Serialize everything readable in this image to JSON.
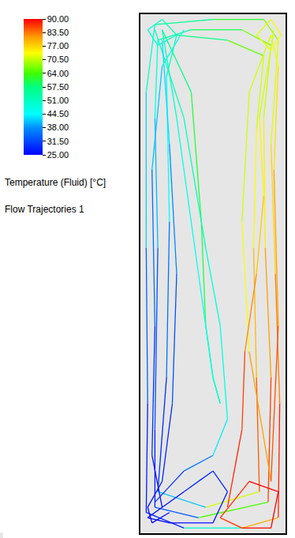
{
  "chart_data": {
    "type": "flow_trajectories",
    "xlim": [
      0,
      1
    ],
    "ylim": [
      0,
      1
    ],
    "grid": false,
    "tick_labels": false,
    "colorbar": {
      "title": "Temperature (Fluid) [°C]",
      "range": [
        25,
        90
      ],
      "ticks": [
        {
          "value": 90,
          "label": "90.00"
        },
        {
          "value": 83.5,
          "label": "83.50"
        },
        {
          "value": 77,
          "label": "77.00"
        },
        {
          "value": 70.5,
          "label": "70.50"
        },
        {
          "value": 64,
          "label": "64.00"
        },
        {
          "value": 57.5,
          "label": "57.50"
        },
        {
          "value": 51,
          "label": "51.00"
        },
        {
          "value": 44.5,
          "label": "44.50"
        },
        {
          "value": 38,
          "label": "38.00"
        },
        {
          "value": 31.5,
          "label": "31.50"
        },
        {
          "value": 25,
          "label": "25.00"
        }
      ]
    },
    "annotations": [
      "Flow Trajectories 1"
    ],
    "trajectories": [
      [
        [
          0.95,
          0.03,
          90
        ],
        [
          0.96,
          0.25,
          86
        ],
        [
          0.93,
          0.5,
          80
        ],
        [
          0.9,
          0.75,
          74
        ],
        [
          0.95,
          0.95,
          70
        ],
        [
          0.85,
          0.99,
          66
        ],
        [
          0.5,
          0.99,
          58
        ],
        [
          0.1,
          0.98,
          52
        ],
        [
          0.04,
          0.85,
          46
        ],
        [
          0.04,
          0.55,
          38
        ],
        [
          0.05,
          0.25,
          30
        ],
        [
          0.04,
          0.04,
          26
        ],
        [
          0.3,
          0.01,
          30
        ],
        [
          0.7,
          0.01,
          70
        ],
        [
          0.95,
          0.03,
          90
        ]
      ],
      [
        [
          0.88,
          0.06,
          89
        ],
        [
          0.9,
          0.3,
          84
        ],
        [
          0.86,
          0.55,
          78
        ],
        [
          0.85,
          0.8,
          72
        ],
        [
          0.9,
          0.94,
          70
        ],
        [
          0.7,
          0.97,
          63
        ],
        [
          0.35,
          0.97,
          56
        ],
        [
          0.12,
          0.95,
          50
        ],
        [
          0.1,
          0.8,
          45
        ],
        [
          0.12,
          0.55,
          36
        ],
        [
          0.1,
          0.2,
          29
        ],
        [
          0.1,
          0.05,
          26
        ],
        [
          0.4,
          0.03,
          40
        ],
        [
          0.88,
          0.06,
          89
        ]
      ],
      [
        [
          0.82,
          0.08,
          88
        ],
        [
          0.8,
          0.3,
          82
        ],
        [
          0.78,
          0.55,
          76
        ],
        [
          0.8,
          0.78,
          72
        ],
        [
          0.85,
          0.92,
          71
        ],
        [
          0.6,
          0.95,
          60
        ],
        [
          0.25,
          0.96,
          54
        ],
        [
          0.18,
          0.88,
          49
        ],
        [
          0.2,
          0.6,
          40
        ],
        [
          0.18,
          0.3,
          31
        ],
        [
          0.12,
          0.08,
          27
        ],
        [
          0.45,
          0.05,
          55
        ],
        [
          0.82,
          0.08,
          88
        ]
      ],
      [
        [
          0.9,
          0.1,
          87
        ],
        [
          0.75,
          0.35,
          75
        ],
        [
          0.7,
          0.6,
          72
        ],
        [
          0.75,
          0.85,
          71
        ],
        [
          0.9,
          0.96,
          72
        ],
        [
          0.95,
          0.9,
          74
        ],
        [
          0.92,
          0.7,
          78
        ],
        [
          0.95,
          0.4,
          84
        ],
        [
          0.9,
          0.1,
          87
        ]
      ],
      [
        [
          0.15,
          0.97,
          52
        ],
        [
          0.35,
          0.85,
          60
        ],
        [
          0.42,
          0.6,
          62
        ],
        [
          0.45,
          0.4,
          58
        ],
        [
          0.5,
          0.3,
          54
        ],
        [
          0.55,
          0.25,
          50
        ],
        [
          0.5,
          0.3,
          48
        ],
        [
          0.4,
          0.5,
          45
        ],
        [
          0.25,
          0.8,
          48
        ],
        [
          0.15,
          0.97,
          52
        ]
      ],
      [
        [
          0.1,
          0.97,
          50
        ],
        [
          0.3,
          0.8,
          52
        ],
        [
          0.45,
          0.55,
          50
        ],
        [
          0.55,
          0.4,
          48
        ],
        [
          0.6,
          0.22,
          47
        ],
        [
          0.5,
          0.15,
          40
        ],
        [
          0.3,
          0.12,
          32
        ],
        [
          0.1,
          0.06,
          27
        ]
      ],
      [
        [
          0.15,
          0.95,
          45
        ],
        [
          0.2,
          0.75,
          40
        ],
        [
          0.25,
          0.5,
          35
        ],
        [
          0.22,
          0.25,
          30
        ],
        [
          0.15,
          0.1,
          27
        ],
        [
          0.05,
          0.05,
          25
        ],
        [
          0.08,
          0.02,
          25
        ],
        [
          0.2,
          0.04,
          27
        ]
      ],
      [
        [
          0.05,
          0.03,
          25
        ],
        [
          0.3,
          0.08,
          27
        ],
        [
          0.5,
          0.12,
          30
        ],
        [
          0.6,
          0.08,
          28
        ],
        [
          0.5,
          0.02,
          27
        ],
        [
          0.2,
          0.02,
          25
        ],
        [
          0.05,
          0.03,
          25
        ]
      ],
      [
        [
          0.55,
          0.03,
          85
        ],
        [
          0.75,
          0.1,
          90
        ],
        [
          0.95,
          0.08,
          90
        ],
        [
          0.9,
          0.01,
          90
        ],
        [
          0.7,
          0.01,
          89
        ],
        [
          0.55,
          0.03,
          85
        ]
      ],
      [
        [
          0.6,
          0.05,
          88
        ],
        [
          0.7,
          0.2,
          88
        ],
        [
          0.72,
          0.35,
          85
        ],
        [
          0.8,
          0.5,
          80
        ],
        [
          0.85,
          0.65,
          76
        ],
        [
          0.82,
          0.8,
          73
        ],
        [
          0.92,
          0.97,
          70
        ]
      ],
      [
        [
          0.8,
          0.96,
          72
        ],
        [
          0.9,
          0.99,
          72
        ],
        [
          0.97,
          0.96,
          74
        ],
        [
          0.9,
          0.93,
          73
        ],
        [
          0.8,
          0.96,
          72
        ]
      ],
      [
        [
          0.05,
          0.97,
          48
        ],
        [
          0.15,
          0.99,
          50
        ],
        [
          0.25,
          0.96,
          52
        ],
        [
          0.12,
          0.94,
          48
        ],
        [
          0.05,
          0.97,
          48
        ]
      ],
      [
        [
          0.3,
          0.97,
          50
        ],
        [
          0.15,
          0.9,
          44
        ],
        [
          0.08,
          0.7,
          38
        ],
        [
          0.1,
          0.4,
          32
        ],
        [
          0.08,
          0.15,
          27
        ],
        [
          0.15,
          0.05,
          26
        ]
      ]
    ]
  }
}
